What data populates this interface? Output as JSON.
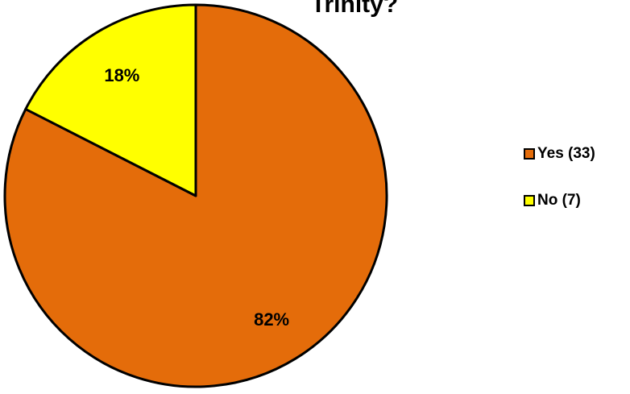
{
  "chart_data": {
    "type": "pie",
    "title": "Trinity?",
    "categories": [
      "Yes (33)",
      "No (7)"
    ],
    "values": [
      33,
      7
    ],
    "percent_labels": [
      "82%",
      "18%"
    ],
    "colors": [
      "#E46C0A",
      "#FFFF00"
    ],
    "legend_position": "right",
    "start_angle_deg": 0,
    "direction": "clockwise"
  }
}
